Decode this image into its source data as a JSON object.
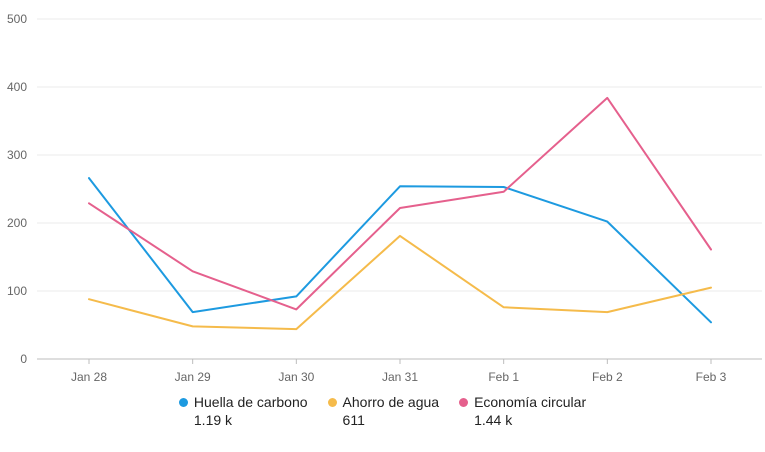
{
  "chart_data": {
    "type": "line",
    "categories": [
      "Jan 28",
      "Jan 29",
      "Jan 30",
      "Jan 31",
      "Feb 1",
      "Feb 2",
      "Feb 3"
    ],
    "ylim": [
      0,
      500
    ],
    "yticks": [
      "0",
      "100",
      "200",
      "300",
      "400",
      "500"
    ],
    "grid": true,
    "legend_position": "bottom",
    "series": [
      {
        "name": "Huella de carbono",
        "total": "1.19 k",
        "color": "#1d9ae0",
        "values": [
          266,
          69,
          92,
          254,
          253,
          202,
          54
        ]
      },
      {
        "name": "Ahorro de agua",
        "total": "611",
        "color": "#f5bb4b",
        "values": [
          88,
          48,
          44,
          181,
          76,
          69,
          105
        ]
      },
      {
        "name": "Economía circular",
        "total": "1.44 k",
        "color": "#e5608d",
        "values": [
          229,
          129,
          73,
          222,
          246,
          384,
          161
        ]
      }
    ]
  }
}
